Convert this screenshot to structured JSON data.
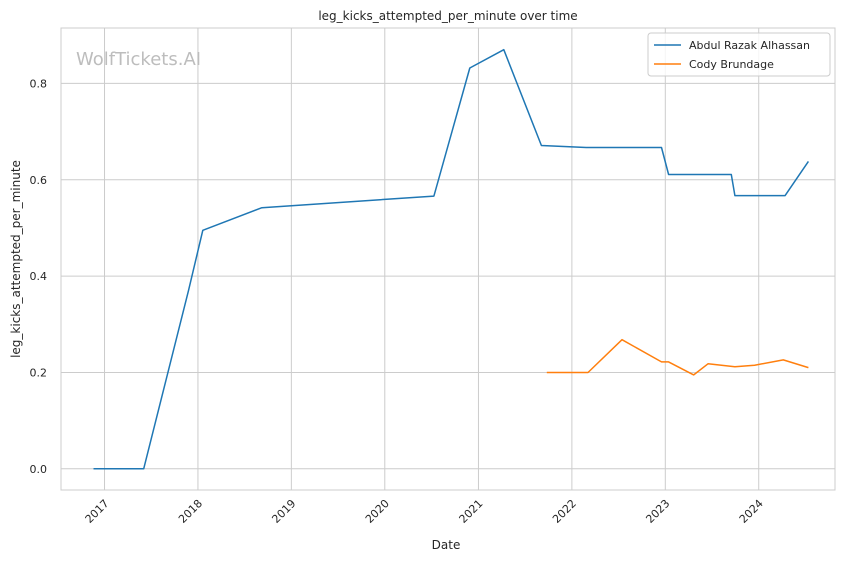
{
  "chart_data": {
    "type": "line",
    "title": "leg_kicks_attempted_per_minute over time",
    "xlabel": "Date",
    "ylabel": "leg_kicks_attempted_per_minute",
    "watermark": "WolfTickets.AI",
    "xlim": [
      "2016-07-15",
      "2024-10-25"
    ],
    "ylim": [
      -0.044,
      0.915
    ],
    "x_ticks": [
      {
        "date": "2017-01-01",
        "label": "2017"
      },
      {
        "date": "2018-01-01",
        "label": "2018"
      },
      {
        "date": "2019-01-01",
        "label": "2019"
      },
      {
        "date": "2020-01-01",
        "label": "2020"
      },
      {
        "date": "2021-01-01",
        "label": "2021"
      },
      {
        "date": "2022-01-01",
        "label": "2022"
      },
      {
        "date": "2023-01-01",
        "label": "2023"
      },
      {
        "date": "2024-01-01",
        "label": "2024"
      }
    ],
    "y_ticks": [
      {
        "value": 0.0,
        "label": "0.0"
      },
      {
        "value": 0.2,
        "label": "0.2"
      },
      {
        "value": 0.4,
        "label": "0.4"
      },
      {
        "value": 0.6,
        "label": "0.6"
      },
      {
        "value": 0.8,
        "label": "0.8"
      }
    ],
    "grid": true,
    "legend_position": "top-right",
    "series": [
      {
        "name": "Abdul Razak Alhassan",
        "color": "#1f77b4",
        "points": [
          {
            "x": "2016-11-19",
            "y": 0.0
          },
          {
            "x": "2017-06-03",
            "y": 0.0
          },
          {
            "x": "2017-11-25",
            "y": 0.37
          },
          {
            "x": "2018-01-20",
            "y": 0.495
          },
          {
            "x": "2018-09-08",
            "y": 0.542
          },
          {
            "x": "2020-07-11",
            "y": 0.566
          },
          {
            "x": "2020-11-28",
            "y": 0.832
          },
          {
            "x": "2021-04-10",
            "y": 0.87
          },
          {
            "x": "2021-09-04",
            "y": 0.671
          },
          {
            "x": "2022-02-26",
            "y": 0.667
          },
          {
            "x": "2022-12-17",
            "y": 0.667
          },
          {
            "x": "2023-01-14",
            "y": 0.611
          },
          {
            "x": "2023-09-16",
            "y": 0.611
          },
          {
            "x": "2023-09-30",
            "y": 0.567
          },
          {
            "x": "2024-04-13",
            "y": 0.567
          },
          {
            "x": "2024-07-13",
            "y": 0.638
          }
        ]
      },
      {
        "name": "Cody Brundage",
        "color": "#ff7f0e",
        "points": [
          {
            "x": "2021-09-25",
            "y": 0.2
          },
          {
            "x": "2022-03-05",
            "y": 0.2
          },
          {
            "x": "2022-07-16",
            "y": 0.268
          },
          {
            "x": "2022-12-17",
            "y": 0.222
          },
          {
            "x": "2023-01-14",
            "y": 0.222
          },
          {
            "x": "2023-04-22",
            "y": 0.195
          },
          {
            "x": "2023-06-17",
            "y": 0.218
          },
          {
            "x": "2023-09-30",
            "y": 0.212
          },
          {
            "x": "2023-12-16",
            "y": 0.215
          },
          {
            "x": "2024-04-06",
            "y": 0.226
          },
          {
            "x": "2024-07-13",
            "y": 0.21
          }
        ]
      }
    ]
  }
}
